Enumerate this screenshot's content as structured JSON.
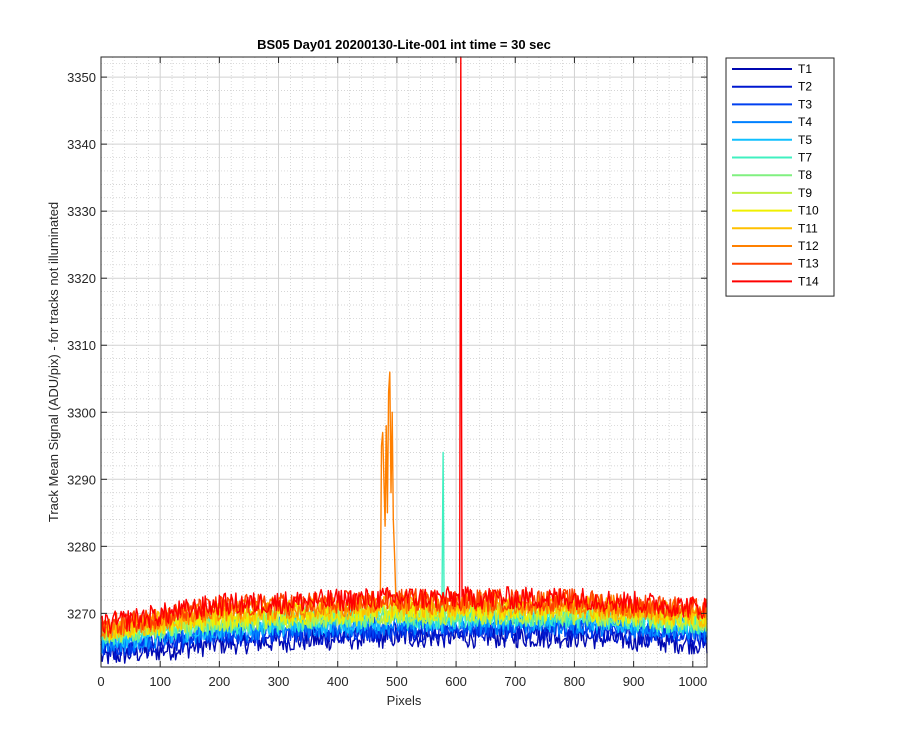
{
  "chart_data": {
    "type": "line",
    "title": "BS05 Day01 20200130-Lite-001 int time = 30 sec",
    "xlabel": "Pixels",
    "ylabel": "Track Mean Signal (ADU/pix) - for tracks not illuminated",
    "xlim": [
      0,
      1024
    ],
    "ylim": [
      3262,
      3353
    ],
    "xticks": [
      "0",
      "100",
      "200",
      "300",
      "400",
      "500",
      "600",
      "700",
      "800",
      "900",
      "1000"
    ],
    "yticks": [
      "3270",
      "3280",
      "3290",
      "3300",
      "3310",
      "3320",
      "3330",
      "3340",
      "3350"
    ],
    "grid": "major and minor",
    "legend_position": "outside right",
    "series": [
      {
        "name": "T1",
        "color": "#0008B0",
        "baseline": [
          [
            0,
            3263.5
          ],
          [
            200,
            3265.5
          ],
          [
            500,
            3266.5
          ],
          [
            800,
            3266.5
          ],
          [
            1024,
            3265.5
          ]
        ],
        "spikes": []
      },
      {
        "name": "T2",
        "color": "#0018D0",
        "baseline": [
          [
            0,
            3264.5
          ],
          [
            200,
            3266.5
          ],
          [
            500,
            3267.5
          ],
          [
            800,
            3267.5
          ],
          [
            1024,
            3266.5
          ]
        ],
        "spikes": []
      },
      {
        "name": "T3",
        "color": "#0040F0",
        "baseline": [
          [
            0,
            3265.0
          ],
          [
            200,
            3267.0
          ],
          [
            500,
            3268.0
          ],
          [
            800,
            3268.0
          ],
          [
            1024,
            3267.0
          ]
        ],
        "spikes": []
      },
      {
        "name": "T4",
        "color": "#0080FF",
        "baseline": [
          [
            0,
            3265.5
          ],
          [
            200,
            3267.5
          ],
          [
            500,
            3268.5
          ],
          [
            800,
            3268.5
          ],
          [
            1024,
            3267.5
          ]
        ],
        "spikes": []
      },
      {
        "name": "T5",
        "color": "#10C0FF",
        "baseline": [
          [
            0,
            3266.0
          ],
          [
            200,
            3268.0
          ],
          [
            500,
            3269.0
          ],
          [
            800,
            3269.0
          ],
          [
            1024,
            3268.0
          ]
        ],
        "spikes": []
      },
      {
        "name": "T7",
        "color": "#40F0C0",
        "baseline": [
          [
            0,
            3266.5
          ],
          [
            200,
            3268.5
          ],
          [
            500,
            3269.5
          ],
          [
            800,
            3269.5
          ],
          [
            1024,
            3268.5
          ]
        ],
        "spikes": [
          [
            578,
            3294
          ]
        ]
      },
      {
        "name": "T8",
        "color": "#80F080",
        "baseline": [
          [
            0,
            3266.8
          ],
          [
            200,
            3268.8
          ],
          [
            500,
            3269.8
          ],
          [
            800,
            3269.8
          ],
          [
            1024,
            3268.8
          ]
        ],
        "spikes": []
      },
      {
        "name": "T9",
        "color": "#C0F040",
        "baseline": [
          [
            0,
            3267.0
          ],
          [
            200,
            3269.0
          ],
          [
            500,
            3270.0
          ],
          [
            800,
            3270.0
          ],
          [
            1024,
            3269.0
          ]
        ],
        "spikes": []
      },
      {
        "name": "T10",
        "color": "#F0F000",
        "baseline": [
          [
            0,
            3267.3
          ],
          [
            200,
            3269.5
          ],
          [
            500,
            3270.5
          ],
          [
            800,
            3270.5
          ],
          [
            1024,
            3269.3
          ]
        ],
        "spikes": []
      },
      {
        "name": "T11",
        "color": "#FFC000",
        "baseline": [
          [
            0,
            3267.5
          ],
          [
            200,
            3270.0
          ],
          [
            500,
            3271.0
          ],
          [
            800,
            3271.0
          ],
          [
            1024,
            3269.5
          ]
        ],
        "spikes": []
      },
      {
        "name": "T12",
        "color": "#FF8000",
        "baseline": [
          [
            0,
            3267.8
          ],
          [
            200,
            3270.5
          ],
          [
            500,
            3271.5
          ],
          [
            800,
            3271.5
          ],
          [
            1024,
            3270.0
          ]
        ],
        "spikes": [
          [
            474,
            3295
          ],
          [
            476,
            3297
          ],
          [
            478,
            3290
          ],
          [
            480,
            3283
          ],
          [
            482,
            3298
          ],
          [
            484,
            3285
          ],
          [
            486,
            3303
          ],
          [
            488,
            3306
          ],
          [
            490,
            3288
          ],
          [
            492,
            3300
          ],
          [
            494,
            3284
          ],
          [
            496,
            3279
          ]
        ]
      },
      {
        "name": "T13",
        "color": "#FF4000",
        "baseline": [
          [
            0,
            3268.0
          ],
          [
            200,
            3271.0
          ],
          [
            500,
            3272.0
          ],
          [
            800,
            3272.0
          ],
          [
            1024,
            3270.5
          ]
        ],
        "spikes": []
      },
      {
        "name": "T14",
        "color": "#FF0000",
        "baseline": [
          [
            0,
            3268.3
          ],
          [
            200,
            3271.3
          ],
          [
            500,
            3272.3
          ],
          [
            800,
            3272.3
          ],
          [
            1024,
            3270.8
          ]
        ],
        "spikes": [
          [
            608,
            3353
          ]
        ]
      }
    ]
  }
}
